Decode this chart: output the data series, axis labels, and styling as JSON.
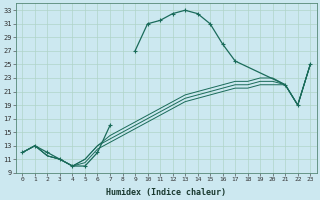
{
  "xlabel": "Humidex (Indice chaleur)",
  "bg_color": "#cce8f0",
  "grid_color": "#b0d4c8",
  "line_color": "#1a6b5a",
  "xlim": [
    -0.5,
    23.5
  ],
  "ylim": [
    9,
    34
  ],
  "xticks": [
    0,
    1,
    2,
    3,
    4,
    5,
    6,
    7,
    8,
    9,
    10,
    11,
    12,
    13,
    14,
    15,
    16,
    17,
    18,
    19,
    20,
    21,
    22,
    23
  ],
  "yticks": [
    9,
    11,
    13,
    15,
    17,
    19,
    21,
    23,
    25,
    27,
    29,
    31,
    33
  ],
  "curves": [
    {
      "segments": [
        {
          "x": [
            0,
            1,
            2,
            3,
            4,
            5,
            6,
            7
          ],
          "y": [
            12,
            13,
            12,
            11,
            10,
            10,
            12,
            16
          ]
        },
        {
          "x": [
            9,
            10,
            11,
            12,
            13,
            14,
            15,
            16,
            17,
            21,
            22,
            23
          ],
          "y": [
            27,
            31,
            31.5,
            32.5,
            33,
            32.5,
            31,
            28,
            25.5,
            22,
            19,
            25
          ]
        }
      ],
      "marker": true
    },
    {
      "segments": [
        {
          "x": [
            0,
            1,
            2,
            3,
            4,
            5,
            6,
            7,
            8,
            9,
            10,
            11,
            12,
            13,
            14,
            15,
            16,
            17,
            18,
            19,
            20,
            21,
            22,
            23
          ],
          "y": [
            12,
            13,
            11.5,
            11,
            10,
            10.5,
            12.5,
            13.5,
            14.5,
            15.5,
            16.5,
            17.5,
            18.5,
            19.5,
            20,
            20.5,
            21,
            21.5,
            21.5,
            22,
            22,
            22,
            19,
            25
          ]
        }
      ],
      "marker": false
    },
    {
      "segments": [
        {
          "x": [
            0,
            1,
            2,
            3,
            4,
            5,
            6,
            7,
            8,
            9,
            10,
            11,
            12,
            13,
            14,
            15,
            16,
            17,
            18,
            19,
            20,
            21,
            22,
            23
          ],
          "y": [
            12,
            13,
            11.5,
            11,
            10,
            11,
            13,
            14,
            15,
            16,
            17,
            18,
            19,
            20,
            20.5,
            21,
            21.5,
            22,
            22,
            22.5,
            22.5,
            22,
            19,
            25
          ]
        }
      ],
      "marker": false
    },
    {
      "segments": [
        {
          "x": [
            0,
            1,
            2,
            3,
            4,
            5,
            6,
            7,
            8,
            9,
            10,
            11,
            12,
            13,
            14,
            15,
            16,
            17,
            18,
            19,
            20,
            21,
            22,
            23
          ],
          "y": [
            12,
            13,
            11.5,
            11,
            10,
            11,
            13,
            14.5,
            15.5,
            16.5,
            17.5,
            18.5,
            19.5,
            20.5,
            21,
            21.5,
            22,
            22.5,
            22.5,
            23,
            23,
            22,
            19,
            25
          ]
        }
      ],
      "marker": false
    }
  ]
}
